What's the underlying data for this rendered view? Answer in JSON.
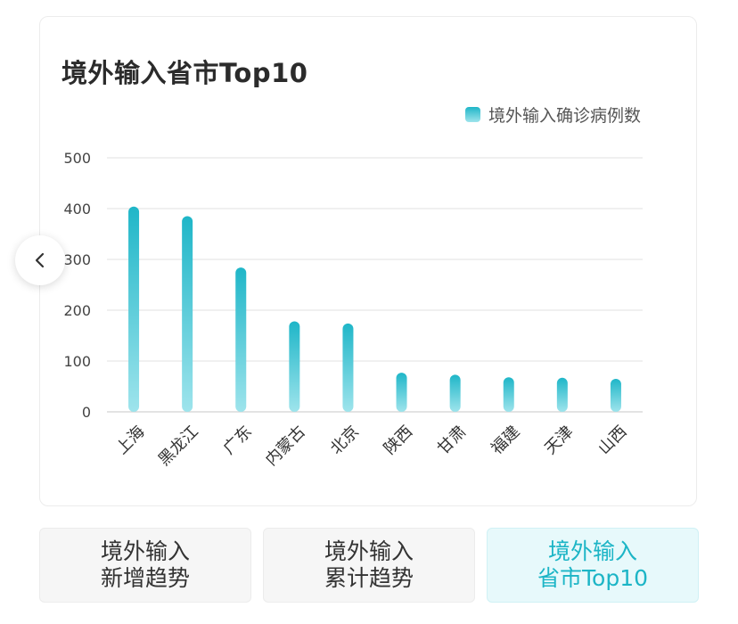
{
  "page": {
    "title": "境外输入省市Top10",
    "accent_color": "#1fb6c8"
  },
  "chart_data": {
    "type": "bar",
    "title": "境外输入省市Top10",
    "categories": [
      "上海",
      "黑龙江",
      "广东",
      "内蒙古",
      "北京",
      "陕西",
      "甘肃",
      "福建",
      "天津",
      "山西"
    ],
    "series": [
      {
        "name": "境外输入确诊病例数",
        "values": [
          404,
          385,
          284,
          178,
          174,
          77,
          73,
          68,
          67,
          65
        ]
      }
    ],
    "ylim": [
      0,
      500
    ],
    "yticks": [
      0,
      100,
      200,
      300,
      400,
      500
    ],
    "grid": true,
    "legend_position": "top-right",
    "bar_color_top": "#1fb6c8",
    "bar_color_bottom": "#9ee4ec"
  },
  "nav": {
    "prev_icon": "chevron-left-icon"
  },
  "tabs": [
    {
      "line1": "境外输入",
      "line2": "新增趋势",
      "active": false
    },
    {
      "line1": "境外输入",
      "line2": "累计趋势",
      "active": false
    },
    {
      "line1": "境外输入",
      "line2": "省市Top10",
      "active": true
    }
  ]
}
